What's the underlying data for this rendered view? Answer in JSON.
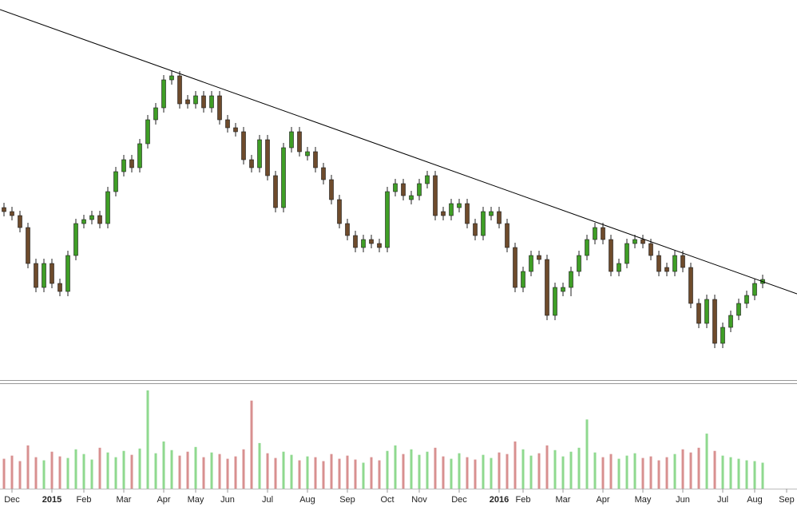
{
  "chart_data": {
    "type": "candlestick",
    "categories": [
      null,
      "Dec",
      null,
      null,
      null,
      null,
      "2015",
      null,
      null,
      null,
      "Feb",
      null,
      null,
      null,
      null,
      "Mar",
      null,
      null,
      null,
      null,
      "Apr",
      null,
      null,
      null,
      "May",
      null,
      null,
      null,
      "Jun",
      null,
      null,
      null,
      null,
      "Jul",
      null,
      null,
      null,
      null,
      "Aug",
      null,
      null,
      null,
      null,
      "Sep",
      null,
      null,
      null,
      null,
      "Oct",
      null,
      null,
      null,
      "Nov",
      null,
      null,
      null,
      null,
      "Dec",
      null,
      null,
      null,
      null,
      "2016",
      null,
      null,
      "Feb",
      null,
      null,
      null,
      null,
      "Mar",
      null,
      null,
      null,
      null,
      "Apr",
      null,
      null,
      null,
      null,
      "May",
      null,
      null,
      null,
      null,
      "Jun",
      null,
      null,
      null,
      null,
      "Jul",
      null,
      null,
      null,
      "Aug",
      null,
      null,
      null,
      "Sep"
    ],
    "open": [
      215,
      210,
      205,
      190,
      145,
      115,
      145,
      120,
      110,
      155,
      195,
      200,
      205,
      195,
      235,
      260,
      275,
      265,
      295,
      325,
      340,
      375,
      380,
      350,
      345,
      355,
      340,
      355,
      325,
      315,
      310,
      275,
      265,
      300,
      255,
      215,
      290,
      310,
      280,
      285,
      265,
      250,
      225,
      195,
      180,
      165,
      175,
      170,
      165,
      235,
      245,
      225,
      230,
      245,
      255,
      210,
      205,
      215,
      220,
      195,
      180,
      205,
      210,
      195,
      165,
      115,
      135,
      155,
      150,
      80,
      110,
      115,
      135,
      155,
      175,
      190,
      175,
      135,
      145,
      170,
      175,
      170,
      155,
      140,
      135,
      155,
      140,
      95,
      70,
      100,
      45,
      65,
      80,
      95,
      105,
      120,
      null,
      null,
      null
    ],
    "high": [
      221,
      216,
      211,
      196,
      151,
      151,
      151,
      126,
      161,
      201,
      206,
      211,
      211,
      241,
      266,
      281,
      281,
      301,
      331,
      346,
      381,
      386,
      386,
      356,
      361,
      361,
      361,
      361,
      331,
      321,
      316,
      281,
      306,
      306,
      261,
      296,
      316,
      316,
      291,
      291,
      271,
      256,
      231,
      201,
      186,
      181,
      181,
      176,
      241,
      251,
      251,
      236,
      251,
      261,
      261,
      216,
      226,
      226,
      226,
      201,
      216,
      216,
      216,
      201,
      171,
      141,
      161,
      161,
      156,
      121,
      121,
      141,
      161,
      181,
      196,
      196,
      181,
      151,
      176,
      181,
      181,
      176,
      161,
      146,
      161,
      161,
      146,
      101,
      106,
      106,
      71,
      86,
      101,
      111,
      126,
      131,
      null,
      null,
      null
    ],
    "low": [
      204,
      199,
      184,
      139,
      109,
      109,
      114,
      104,
      104,
      149,
      189,
      194,
      189,
      189,
      229,
      254,
      259,
      259,
      289,
      319,
      334,
      369,
      339,
      339,
      339,
      334,
      334,
      319,
      309,
      304,
      269,
      259,
      259,
      249,
      209,
      209,
      284,
      279,
      274,
      259,
      244,
      219,
      189,
      174,
      159,
      159,
      164,
      159,
      159,
      229,
      224,
      219,
      224,
      239,
      199,
      199,
      199,
      209,
      189,
      174,
      174,
      199,
      189,
      159,
      109,
      109,
      129,
      144,
      74,
      74,
      104,
      104,
      129,
      149,
      169,
      169,
      129,
      129,
      139,
      164,
      164,
      149,
      129,
      129,
      129,
      134,
      89,
      64,
      64,
      39,
      39,
      59,
      74,
      89,
      99,
      114,
      null,
      null,
      null
    ],
    "close": [
      210,
      205,
      190,
      145,
      115,
      145,
      120,
      110,
      155,
      195,
      200,
      205,
      195,
      235,
      260,
      275,
      265,
      295,
      325,
      340,
      375,
      380,
      345,
      345,
      355,
      340,
      355,
      325,
      315,
      310,
      275,
      265,
      300,
      255,
      215,
      290,
      310,
      285,
      285,
      265,
      250,
      225,
      195,
      180,
      165,
      175,
      170,
      165,
      235,
      245,
      230,
      230,
      245,
      255,
      205,
      205,
      220,
      220,
      195,
      180,
      210,
      210,
      195,
      165,
      115,
      135,
      155,
      150,
      80,
      115,
      115,
      135,
      155,
      175,
      190,
      175,
      135,
      145,
      170,
      175,
      170,
      155,
      135,
      135,
      155,
      140,
      95,
      70,
      100,
      45,
      65,
      80,
      95,
      105,
      120,
      125,
      null,
      null,
      null
    ],
    "volume": [
      38,
      42,
      35,
      55,
      40,
      36,
      47,
      41,
      39,
      50,
      44,
      37,
      52,
      46,
      40,
      48,
      43,
      51,
      125,
      45,
      60,
      49,
      42,
      47,
      53,
      40,
      46,
      44,
      38,
      41,
      50,
      112,
      58,
      45,
      39,
      47,
      43,
      36,
      41,
      40,
      35,
      44,
      38,
      42,
      37,
      33,
      40,
      36,
      48,
      55,
      44,
      50,
      43,
      47,
      52,
      41,
      38,
      45,
      40,
      37,
      43,
      39,
      46,
      44,
      60,
      50,
      42,
      45,
      55,
      49,
      41,
      47,
      52,
      88,
      46,
      40,
      44,
      38,
      42,
      45,
      39,
      41,
      36,
      40,
      44,
      50,
      46,
      52,
      70,
      48,
      42,
      40,
      38,
      36,
      35,
      33,
      null,
      null,
      null
    ],
    "ylim": [
      0,
      475
    ],
    "volume_ylim": [
      0,
      130
    ],
    "up_color": "#3f9e26",
    "down_color": "#6e4b2c",
    "volume_up_color": "#8fd98f",
    "volume_down_color": "#d89090",
    "trendline": {
      "x": [
        -0.5,
        99.3
      ],
      "values": [
        463,
        107
      ],
      "color": "#000000"
    }
  }
}
